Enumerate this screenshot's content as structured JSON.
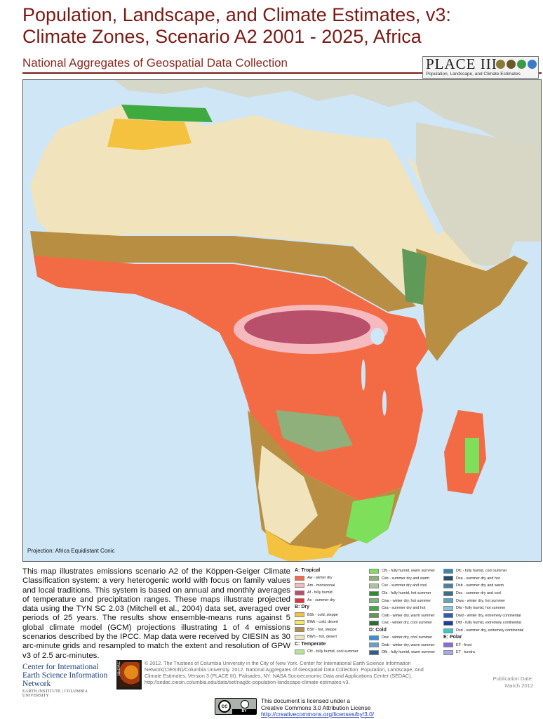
{
  "title_line1": "Population, Landscape, and Climate Estimates, v3:",
  "title_line2": "Climate Zones, Scenario A2 2001 - 2025, Africa",
  "subtitle": "National Aggregates of Geospatial Data Collection",
  "logo": {
    "title": "PLACE III",
    "subtitle": "Population, Landscape, and Climate Estimates"
  },
  "map": {
    "projection": "Projection: Africa Equidistant Conic"
  },
  "description": "This map illustrates emissions scenario A2 of the Köppen-Geiger Climate Classification system: a very heterogenic world with focus on family values and local traditions. This system is based on annual and monthly averages of temperature and precipitation ranges. These maps illustrate projected data using the TYN SC 2.03 (Mitchell et al., 2004) data set, averaged over periods of 25 years. The results show ensemble-means runs against 5 global climate model (GCM) projections illustrating 1 of 4 emissions scenarios described by the IPCC. Map data were received by CIESIN as 30 arc-minute grids and resampled to match the extent and resolution of GPW v3 of 2.5 arc-minutes.",
  "legend": {
    "col1": [
      {
        "head": "A: Tropical"
      },
      {
        "label": "Aw - winter dry",
        "color": "#f26b45"
      },
      {
        "label": "Am - monsoonal",
        "color": "#f6b9bd"
      },
      {
        "label": "Af - fully humid",
        "color": "#b8506c"
      },
      {
        "label": "As - summer dry",
        "color": "#e8303c"
      },
      {
        "head": "B: Dry"
      },
      {
        "label": "BSk - cold, steppe",
        "color": "#f4c23e"
      },
      {
        "label": "BWk - cold, desert",
        "color": "#f5ea5c"
      },
      {
        "label": "BSh - hot, steppe",
        "color": "#b88f42"
      },
      {
        "label": "BWh - hot, desert",
        "color": "#f1e4bd"
      },
      {
        "head": "C: Temperate"
      },
      {
        "label": "Cfc - fully humid, cool summer",
        "color": "#b6e59a"
      }
    ],
    "col2": [
      {
        "label": "Cfb - fully humid, warm summer",
        "color": "#7ee05a"
      },
      {
        "label": "Csb - summer dry and warm",
        "color": "#8fb07a"
      },
      {
        "label": "Csc - summer dry and cool",
        "color": "#a9c79c"
      },
      {
        "label": "Cfa - fully humid, hot summer",
        "color": "#2e8b2e"
      },
      {
        "label": "Cwa - winter dry, hot summer",
        "color": "#7fb47a"
      },
      {
        "label": "Csa - summer dry and hot",
        "color": "#3faa3f"
      },
      {
        "label": "Cwb - winter dry, warm summer",
        "color": "#5f9a58"
      },
      {
        "label": "Cwc - winter dry, cool summer",
        "color": "#2f6a30"
      },
      {
        "head": "D: Cold"
      },
      {
        "label": "Dwc - winter dry, cool summer",
        "color": "#3f8fd8"
      },
      {
        "label": "Dwb - winter dry, warm summer",
        "color": "#6a9fc8"
      },
      {
        "label": "Dfb - fully humid, warm summer",
        "color": "#2f5f8f"
      }
    ],
    "col3": [
      {
        "label": "Dfc - fully humid, cool summer",
        "color": "#3b85b0"
      },
      {
        "label": "Dsa - summer dry and hot",
        "color": "#274f6a"
      },
      {
        "label": "Dsb - summer dry and warm",
        "color": "#4e7fa0"
      },
      {
        "label": "Dsc - summer dry and cool",
        "color": "#3a6f8a"
      },
      {
        "label": "Dwa - winter dry, hot summer",
        "color": "#5da6c8"
      },
      {
        "label": "Dfa - fully humid, hot summer",
        "color": "#8cc3e0"
      },
      {
        "label": "Dwd - winter dry, extremely continental",
        "color": "#2d5bb8"
      },
      {
        "label": "Dfd - fully humid, extremely continental",
        "color": "#1f3f9a"
      },
      {
        "label": "Dsd - summer dry, extremely continental",
        "color": "#38c8c8"
      },
      {
        "head": "E: Polar"
      },
      {
        "label": "EF - frost",
        "color": "#8a6ad8"
      },
      {
        "label": "ET - tundra",
        "color": "#a8a8e8"
      }
    ]
  },
  "ciesin": {
    "line1": "Center for International Earth Science Information Network",
    "line2": "EARTH INSTITUTE | COLUMBIA UNIVERSITY"
  },
  "sedac_label": "SEDAC",
  "copyright": "© 2012. The Trustees of Columbia University in the City of New York. Center for International Earth Science Information Network(CIESIN)/Columbia University. 2012. National Aggregates of Geospatial Data Collection: Population, Landscape, And Climate Estimates, Version 3 (PLACE III). Palisades, NY: NASA Socioeconomic Data and Applications Center (SEDAC). http://sedac.ciesin.columbia.edu/data/set/nagdc-population-landscape-climate-estimates-v3.",
  "publication": {
    "label": "Publication Date:",
    "date": "March 2012"
  },
  "cc": {
    "symbol": "cc",
    "by": "BY"
  },
  "license": {
    "line1": "This document is licensed under a",
    "line2": "Creative Commons 3.0 Attribution License",
    "url": "http://creativecommons.org/licenses/by/3.0/"
  }
}
